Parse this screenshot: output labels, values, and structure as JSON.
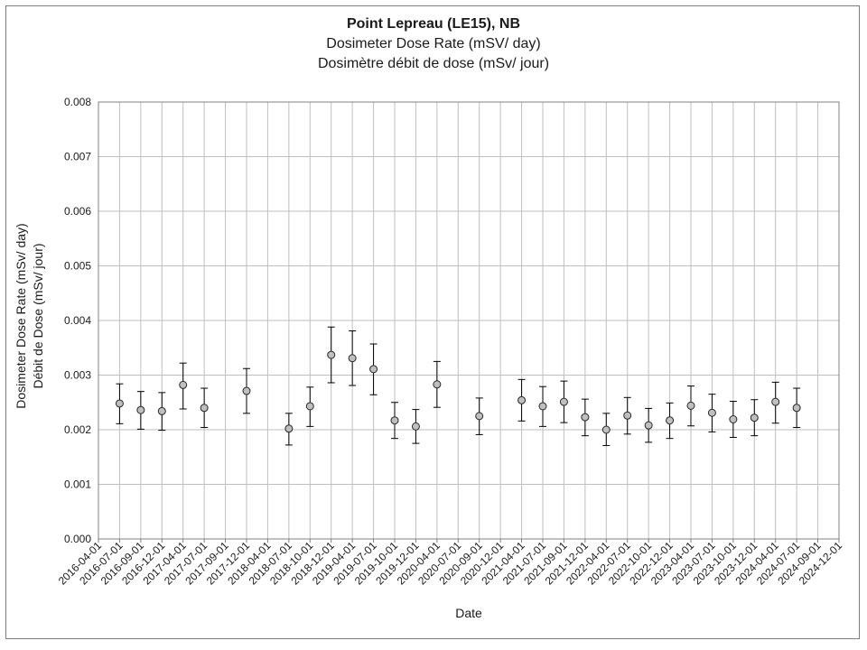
{
  "chart_data": {
    "type": "scatter",
    "title": "Point Lepreau (LE15), NB",
    "subtitle": "Dosimeter Dose Rate (mSV/ day)",
    "subtitle_fr": "Dosimètre débit de dose (mSv/ jour)",
    "xlabel": "Date",
    "ylabel": "Dosimeter Dose Rate (mSv/ day)",
    "ylabel_fr": "Débit de Dose (mSv/ jour)",
    "ylim": [
      0,
      0.008
    ],
    "yticks": [
      "0.000",
      "0.001",
      "0.002",
      "0.003",
      "0.004",
      "0.005",
      "0.006",
      "0.007",
      "0.008"
    ],
    "xticks": [
      "2016-04-01",
      "2016-07-01",
      "2016-09-01",
      "2016-12-01",
      "2017-04-01",
      "2017-07-01",
      "2017-09-01",
      "2017-12-01",
      "2018-04-01",
      "2018-07-01",
      "2018-10-01",
      "2018-12-01",
      "2019-04-01",
      "2019-07-01",
      "2019-10-01",
      "2019-12-01",
      "2020-04-01",
      "2020-07-01",
      "2020-09-01",
      "2020-12-01",
      "2021-04-01",
      "2021-07-01",
      "2021-09-01",
      "2021-12-01",
      "2022-04-01",
      "2022-07-01",
      "2022-10-01",
      "2022-12-01",
      "2023-04-01",
      "2023-07-01",
      "2023-10-01",
      "2023-12-01",
      "2024-04-01",
      "2024-07-01",
      "2024-09-01",
      "2024-12-01"
    ],
    "grid": true,
    "points": [
      {
        "x": "2016-07-01",
        "y": 0.00248,
        "err_low": 0.00211,
        "err_high": 0.00284
      },
      {
        "x": "2016-09-01",
        "y": 0.00236,
        "err_low": 0.00201,
        "err_high": 0.0027
      },
      {
        "x": "2016-12-01",
        "y": 0.00234,
        "err_low": 0.00199,
        "err_high": 0.00268
      },
      {
        "x": "2017-04-01",
        "y": 0.00282,
        "err_low": 0.00238,
        "err_high": 0.00322
      },
      {
        "x": "2017-07-01",
        "y": 0.0024,
        "err_low": 0.00204,
        "err_high": 0.00276
      },
      {
        "x": "2017-12-01",
        "y": 0.00271,
        "err_low": 0.0023,
        "err_high": 0.00312
      },
      {
        "x": "2018-07-01",
        "y": 0.00202,
        "err_low": 0.00172,
        "err_high": 0.0023
      },
      {
        "x": "2018-10-01",
        "y": 0.00243,
        "err_low": 0.00206,
        "err_high": 0.00278
      },
      {
        "x": "2018-12-01",
        "y": 0.00337,
        "err_low": 0.00286,
        "err_high": 0.00388
      },
      {
        "x": "2019-04-01",
        "y": 0.00331,
        "err_low": 0.00281,
        "err_high": 0.00381
      },
      {
        "x": "2019-07-01",
        "y": 0.00311,
        "err_low": 0.00264,
        "err_high": 0.00357
      },
      {
        "x": "2019-10-01",
        "y": 0.00217,
        "err_low": 0.00184,
        "err_high": 0.0025
      },
      {
        "x": "2019-12-01",
        "y": 0.00206,
        "err_low": 0.00175,
        "err_high": 0.00237
      },
      {
        "x": "2020-04-01",
        "y": 0.00283,
        "err_low": 0.00241,
        "err_high": 0.00325
      },
      {
        "x": "2020-09-01",
        "y": 0.00225,
        "err_low": 0.00191,
        "err_high": 0.00258
      },
      {
        "x": "2021-04-01",
        "y": 0.00254,
        "err_low": 0.00216,
        "err_high": 0.00292
      },
      {
        "x": "2021-07-01",
        "y": 0.00243,
        "err_low": 0.00206,
        "err_high": 0.00279
      },
      {
        "x": "2021-09-01",
        "y": 0.00251,
        "err_low": 0.00213,
        "err_high": 0.00289
      },
      {
        "x": "2021-12-01",
        "y": 0.00223,
        "err_low": 0.00189,
        "err_high": 0.00256
      },
      {
        "x": "2022-04-01",
        "y": 0.002,
        "err_low": 0.00171,
        "err_high": 0.0023
      },
      {
        "x": "2022-07-01",
        "y": 0.00226,
        "err_low": 0.00192,
        "err_high": 0.00259
      },
      {
        "x": "2022-10-01",
        "y": 0.00208,
        "err_low": 0.00177,
        "err_high": 0.00239
      },
      {
        "x": "2022-12-01",
        "y": 0.00217,
        "err_low": 0.00184,
        "err_high": 0.00249
      },
      {
        "x": "2023-04-01",
        "y": 0.00244,
        "err_low": 0.00207,
        "err_high": 0.0028
      },
      {
        "x": "2023-07-01",
        "y": 0.00231,
        "err_low": 0.00196,
        "err_high": 0.00265
      },
      {
        "x": "2023-10-01",
        "y": 0.00219,
        "err_low": 0.00186,
        "err_high": 0.00252
      },
      {
        "x": "2023-12-01",
        "y": 0.00222,
        "err_low": 0.00189,
        "err_high": 0.00255
      },
      {
        "x": "2024-04-01",
        "y": 0.00251,
        "err_low": 0.00212,
        "err_high": 0.00287
      },
      {
        "x": "2024-07-01",
        "y": 0.0024,
        "err_low": 0.00204,
        "err_high": 0.00276
      }
    ]
  }
}
